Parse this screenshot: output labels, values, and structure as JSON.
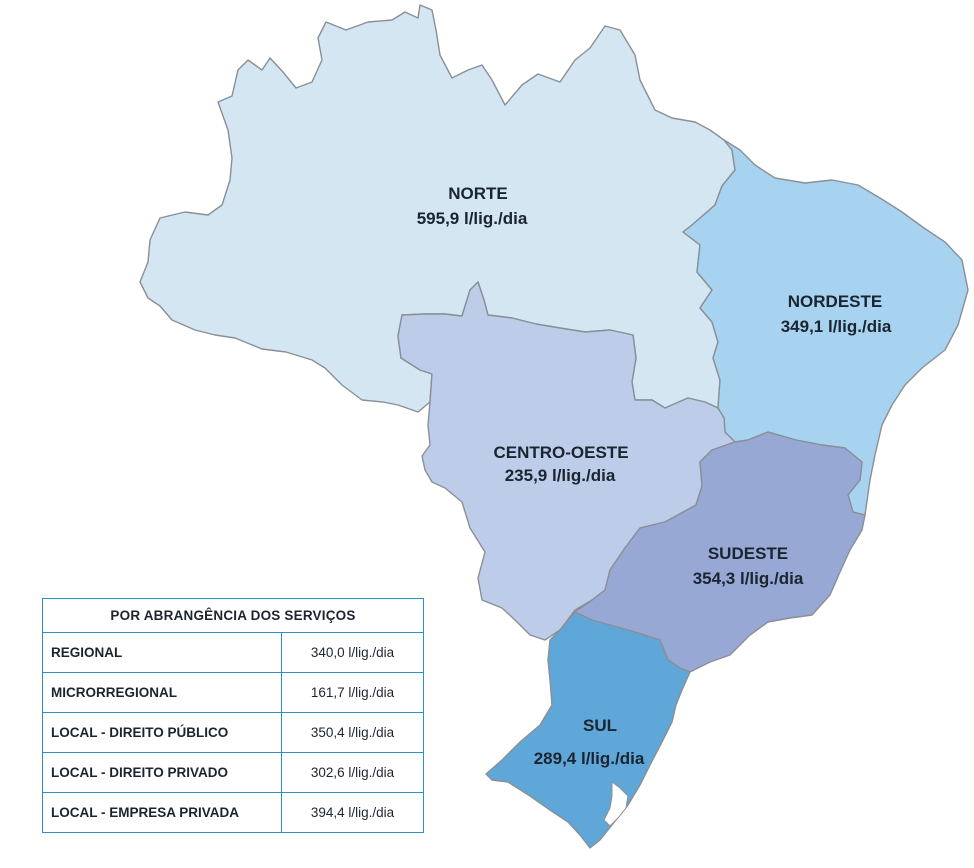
{
  "regions": [
    {
      "id": "norte",
      "name": "NORTE",
      "value": "595,9 l/lig./dia",
      "color": "#d3e6f1"
    },
    {
      "id": "nordeste",
      "name": "NORDESTE",
      "value": "349,1 l/lig./dia",
      "color": "#a7d3f0"
    },
    {
      "id": "centro-oeste",
      "name": "CENTRO-OESTE",
      "value": "235,9 l/lig./dia",
      "color": "#bdcde9"
    },
    {
      "id": "sudeste",
      "name": "SUDESTE",
      "value": "354,3 l/lig./dia",
      "color": "#97a8d5"
    },
    {
      "id": "sul",
      "name": "SUL",
      "value": "289,4 l/lig./dia",
      "color": "#5fa7d9"
    }
  ],
  "legend": {
    "title": "POR ABRANGÊNCIA DOS SERVIÇOS",
    "rows": [
      {
        "label": "REGIONAL",
        "value": "340,0 l/lig./dia"
      },
      {
        "label": "MICRORREGIONAL",
        "value": "161,7 l/lig./dia"
      },
      {
        "label": "LOCAL - DIREITO PÚBLICO",
        "value": "350,4 l/lig./dia"
      },
      {
        "label": "LOCAL - DIREITO PRIVADO",
        "value": "302,6 l/lig./dia"
      },
      {
        "label": "LOCAL - EMPRESA PRIVADA",
        "value": "394,4 l/lig./dia"
      }
    ],
    "border_color": "#2d8fc4"
  }
}
